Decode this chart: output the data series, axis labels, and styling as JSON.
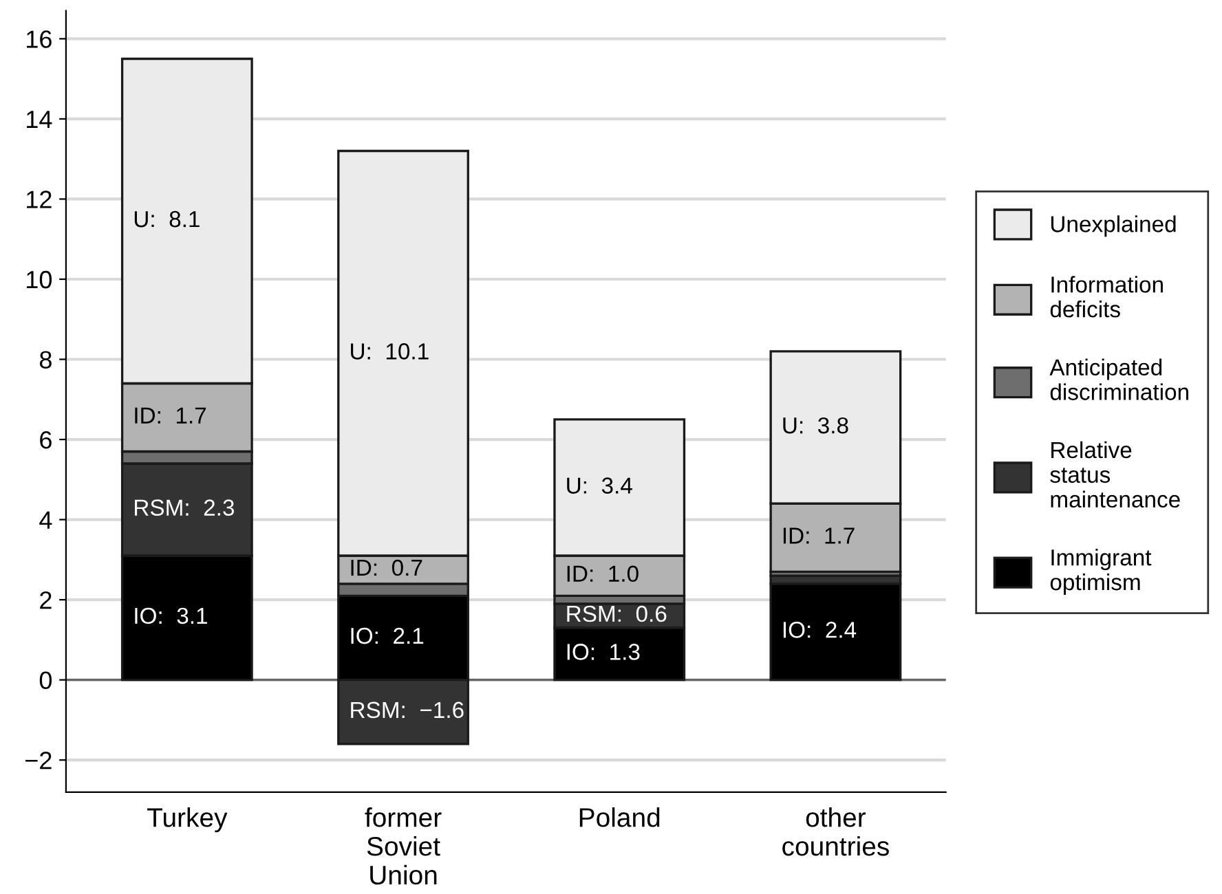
{
  "chart_data": {
    "type": "bar",
    "stacked": true,
    "categories": [
      "Turkey",
      "former\nSoviet\nUnion",
      "Poland",
      "other\ncountries"
    ],
    "series": [
      {
        "name": "Immigrant\noptimism",
        "color": "#000000",
        "values": [
          3.1,
          2.1,
          1.3,
          2.4
        ],
        "value_labels": [
          "IO:  3.1",
          "IO:  2.1",
          "IO:  1.3",
          "IO:  2.4"
        ]
      },
      {
        "name": "Relative\nstatus\nmaintenance",
        "color": "#333333",
        "values": [
          2.3,
          -1.6,
          0.6,
          0.2
        ],
        "value_labels": [
          "RSM:  2.3",
          "RSM:  −1.6",
          "RSM:  0.6",
          null
        ]
      },
      {
        "name": "Anticipated\ndiscrimination",
        "color": "#6e6e6e",
        "values": [
          0.3,
          0.3,
          0.2,
          0.1
        ],
        "value_labels": [
          null,
          null,
          null,
          null
        ]
      },
      {
        "name": "Information\ndeficits",
        "color": "#b3b3b3",
        "values": [
          1.7,
          0.7,
          1.0,
          1.7
        ],
        "value_labels": [
          "ID:  1.7",
          "ID:  0.7",
          "ID:  1.0",
          "ID:  1.7"
        ]
      },
      {
        "name": "Unexplained",
        "color": "#ebebeb",
        "values": [
          8.1,
          10.1,
          3.4,
          3.8
        ],
        "value_labels": [
          "U:  8.1",
          "U:  10.1",
          "U:  3.4",
          "U:  3.8"
        ]
      }
    ],
    "ylim": [
      -2.8,
      16.7
    ],
    "yticks": [
      {
        "value": -2,
        "label": "−2"
      },
      0,
      2,
      4,
      6,
      8,
      10,
      12,
      14,
      16
    ],
    "grid": "y",
    "legend": "right",
    "ref_lines": [
      {
        "axis": "y",
        "value": 0,
        "color": "#666666"
      }
    ]
  }
}
